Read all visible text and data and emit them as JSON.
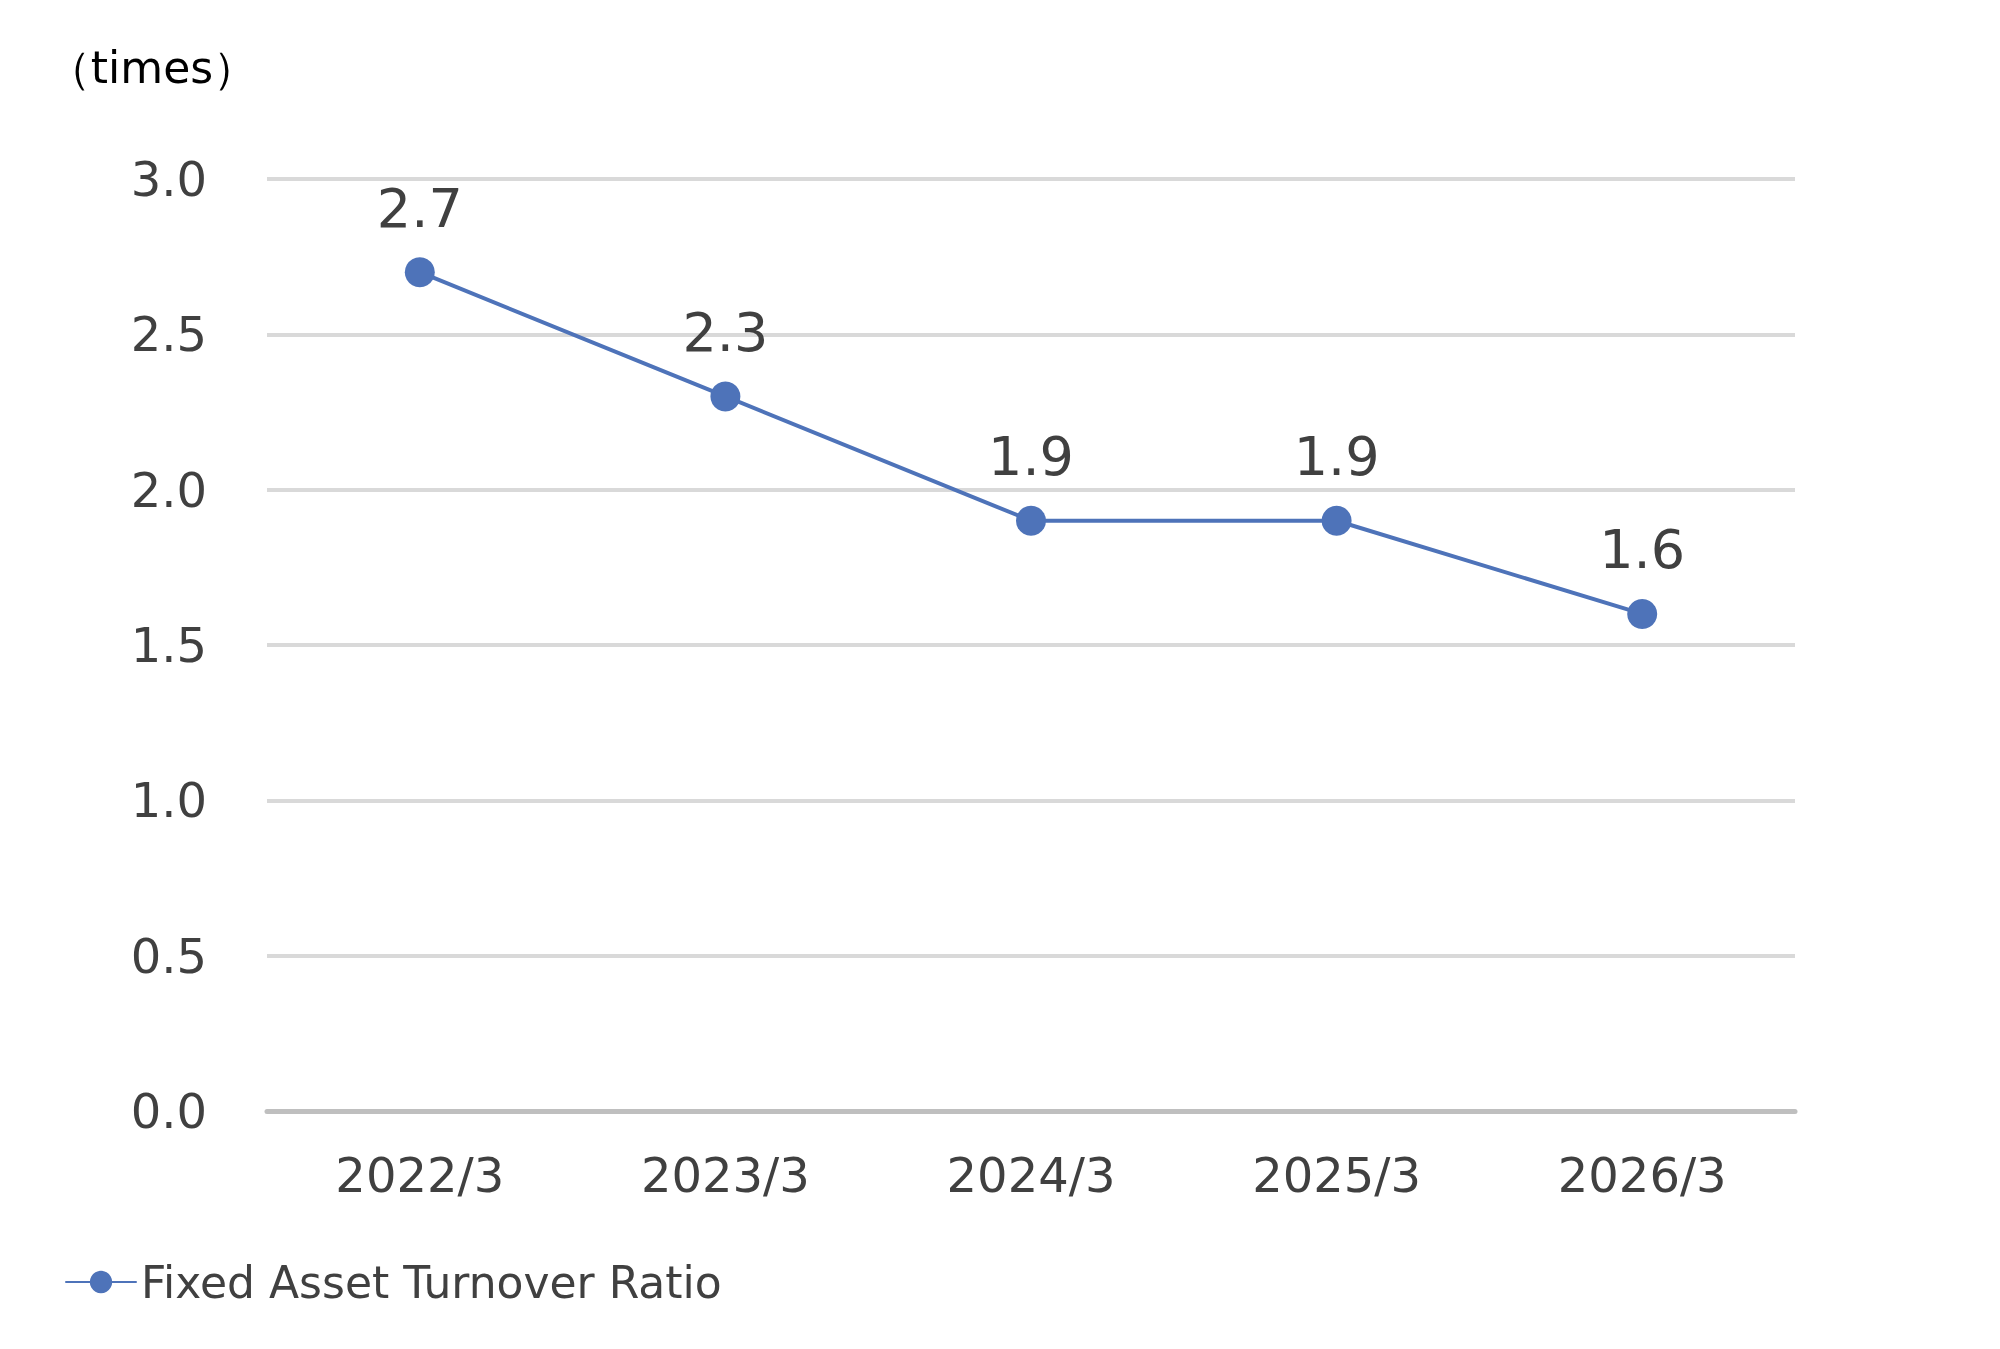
{
  "chart_data": {
    "type": "line",
    "ylabel": "（times）",
    "categories": [
      "2022/3",
      "2023/3",
      "2024/3",
      "2025/3",
      "2026/3"
    ],
    "series": [
      {
        "name": "Fixed Asset Turnover Ratio",
        "color": "#4e73b9",
        "values": [
          2.7,
          2.3,
          1.9,
          1.9,
          1.6
        ]
      }
    ],
    "ylim": [
      0,
      3
    ],
    "yticks": [
      {
        "value": 0,
        "label": "0.0"
      },
      0.5,
      {
        "value": 1,
        "label": "1.0"
      },
      1.5,
      {
        "value": 2,
        "label": "2.0"
      },
      2.5,
      {
        "value": 3,
        "label": "3.0"
      }
    ],
    "grid": "y",
    "legend": "bottom left",
    "marker": "circle",
    "line_style": "solid",
    "data_labels": true
  }
}
